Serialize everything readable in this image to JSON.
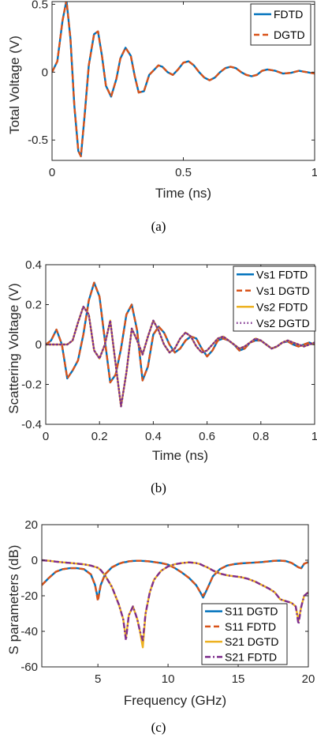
{
  "chart_data": [
    {
      "type": "line",
      "caption": "(a)",
      "xlabel": "Time (ns)",
      "ylabel": "Total Voltage (V)",
      "xlim": [
        0,
        1
      ],
      "ylim": [
        -0.65,
        0.52
      ],
      "xticks": [
        0,
        0.5,
        1
      ],
      "xtick_labels": [
        "0",
        "0.5",
        "1"
      ],
      "yticks": [
        -0.5,
        0,
        0.5
      ],
      "ytick_labels": [
        "-0.5",
        "0",
        "0.5"
      ],
      "grid": false,
      "legend_position": "top-right",
      "x": [
        0,
        0.02,
        0.04,
        0.055,
        0.07,
        0.085,
        0.1,
        0.11,
        0.125,
        0.14,
        0.16,
        0.175,
        0.19,
        0.205,
        0.225,
        0.245,
        0.26,
        0.28,
        0.3,
        0.315,
        0.33,
        0.35,
        0.37,
        0.39,
        0.405,
        0.42,
        0.44,
        0.46,
        0.48,
        0.5,
        0.52,
        0.54,
        0.56,
        0.58,
        0.6,
        0.62,
        0.64,
        0.66,
        0.68,
        0.7,
        0.72,
        0.74,
        0.76,
        0.78,
        0.8,
        0.82,
        0.85,
        0.88,
        0.91,
        0.94,
        0.97,
        1.0
      ],
      "series": [
        {
          "name": "FDTD",
          "color": "#0072BD",
          "dash": "solid",
          "values": [
            0,
            0.08,
            0.38,
            0.53,
            0.25,
            -0.25,
            -0.58,
            -0.62,
            -0.3,
            0.05,
            0.28,
            0.3,
            0.12,
            -0.1,
            -0.18,
            -0.05,
            0.1,
            0.18,
            0.12,
            -0.03,
            -0.15,
            -0.14,
            -0.02,
            0.02,
            0.05,
            0.04,
            0.0,
            -0.02,
            0.02,
            0.07,
            0.08,
            0.05,
            0.0,
            -0.04,
            -0.06,
            -0.04,
            0.0,
            0.03,
            0.04,
            0.03,
            0.0,
            -0.02,
            -0.03,
            -0.02,
            0.01,
            0.02,
            0.01,
            -0.01,
            -0.005,
            0.01,
            0.0,
            -0.01
          ]
        },
        {
          "name": "DGTD",
          "color": "#D95319",
          "dash": "dash",
          "values": [
            0,
            0.08,
            0.38,
            0.53,
            0.25,
            -0.25,
            -0.58,
            -0.62,
            -0.3,
            0.05,
            0.28,
            0.3,
            0.12,
            -0.1,
            -0.18,
            -0.05,
            0.1,
            0.18,
            0.12,
            -0.03,
            -0.15,
            -0.14,
            -0.02,
            0.02,
            0.05,
            0.04,
            0.0,
            -0.02,
            0.02,
            0.07,
            0.08,
            0.05,
            0.0,
            -0.04,
            -0.06,
            -0.04,
            0.0,
            0.03,
            0.04,
            0.03,
            0.0,
            -0.02,
            -0.03,
            -0.02,
            0.01,
            0.02,
            0.01,
            -0.01,
            -0.005,
            0.01,
            0.0,
            -0.01
          ]
        }
      ]
    },
    {
      "type": "line",
      "caption": "(b)",
      "xlabel": "Time (ns)",
      "ylabel": "Scattering Voltage (V)",
      "xlim": [
        0,
        1
      ],
      "ylim": [
        -0.4,
        0.4
      ],
      "xticks": [
        0,
        0.2,
        0.4,
        0.6,
        0.8,
        1
      ],
      "xtick_labels": [
        "0",
        "0.2",
        "0.4",
        "0.6",
        "0.8",
        "1"
      ],
      "yticks": [
        -0.4,
        -0.2,
        0,
        0.2,
        0.4
      ],
      "ytick_labels": [
        "-0.4",
        "-0.2",
        "0",
        "0.2",
        "0.4"
      ],
      "grid": false,
      "legend_position": "top-right",
      "x": [
        0,
        0.02,
        0.04,
        0.06,
        0.08,
        0.1,
        0.12,
        0.14,
        0.16,
        0.18,
        0.2,
        0.22,
        0.24,
        0.26,
        0.28,
        0.3,
        0.32,
        0.34,
        0.36,
        0.38,
        0.4,
        0.42,
        0.44,
        0.46,
        0.48,
        0.5,
        0.52,
        0.54,
        0.56,
        0.58,
        0.6,
        0.62,
        0.64,
        0.66,
        0.68,
        0.7,
        0.72,
        0.74,
        0.76,
        0.78,
        0.8,
        0.82,
        0.84,
        0.86,
        0.88,
        0.9,
        0.92,
        0.94,
        0.96,
        0.98,
        1.0
      ],
      "series": [
        {
          "name": "Vs1 FDTD",
          "color": "#0072BD",
          "dash": "solid",
          "values": [
            0,
            0.02,
            0.075,
            0.0,
            -0.17,
            -0.13,
            -0.08,
            0.05,
            0.22,
            0.31,
            0.24,
            0.02,
            -0.19,
            -0.15,
            -0.02,
            0.15,
            0.2,
            0.07,
            -0.18,
            -0.11,
            0.05,
            0.09,
            0.06,
            0.0,
            -0.04,
            -0.02,
            0.02,
            0.04,
            0.03,
            -0.02,
            -0.06,
            -0.03,
            0.02,
            0.03,
            0.02,
            0.0,
            -0.03,
            -0.02,
            0.01,
            0.02,
            0.02,
            0.0,
            -0.02,
            -0.01,
            0.01,
            0.015,
            0.0,
            -0.01,
            0.0,
            0.01,
            0.0
          ]
        },
        {
          "name": "Vs1 DGTD",
          "color": "#D95319",
          "dash": "dash",
          "values": [
            0,
            0.02,
            0.075,
            0.0,
            -0.17,
            -0.13,
            -0.08,
            0.05,
            0.22,
            0.31,
            0.24,
            0.02,
            -0.19,
            -0.15,
            -0.02,
            0.15,
            0.2,
            0.07,
            -0.18,
            -0.11,
            0.05,
            0.09,
            0.06,
            0.0,
            -0.04,
            -0.02,
            0.02,
            0.04,
            0.03,
            -0.02,
            -0.06,
            -0.03,
            0.02,
            0.03,
            0.02,
            0.0,
            -0.03,
            -0.02,
            0.01,
            0.02,
            0.02,
            0.0,
            -0.02,
            -0.01,
            0.01,
            0.015,
            0.0,
            -0.01,
            0.0,
            0.01,
            0.0
          ]
        },
        {
          "name": "Vs2 FDTD",
          "color": "#EDB120",
          "dash": "solid",
          "values": [
            0,
            0.0,
            0.0,
            0.0,
            0.0,
            0.02,
            0.11,
            0.19,
            0.15,
            -0.03,
            -0.07,
            0.0,
            0.12,
            -0.1,
            -0.31,
            -0.14,
            0.08,
            0.02,
            -0.05,
            0.04,
            0.12,
            0.07,
            0.0,
            -0.04,
            -0.02,
            0.03,
            0.06,
            0.04,
            -0.01,
            -0.04,
            -0.03,
            0.0,
            0.03,
            0.04,
            0.02,
            0.0,
            -0.02,
            -0.01,
            0.01,
            0.03,
            0.02,
            0.0,
            -0.02,
            -0.01,
            0.01,
            0.02,
            0.01,
            0.0,
            -0.01,
            0.0,
            0.01
          ]
        },
        {
          "name": "Vs2 DGTD",
          "color": "#7E2F8E",
          "dash": "dot",
          "values": [
            0,
            0.0,
            0.0,
            0.0,
            0.0,
            0.02,
            0.11,
            0.19,
            0.15,
            -0.03,
            -0.07,
            0.0,
            0.12,
            -0.1,
            -0.31,
            -0.14,
            0.08,
            0.02,
            -0.05,
            0.04,
            0.12,
            0.07,
            0.0,
            -0.04,
            -0.02,
            0.03,
            0.06,
            0.04,
            -0.01,
            -0.04,
            -0.03,
            0.0,
            0.03,
            0.04,
            0.02,
            0.0,
            -0.02,
            -0.01,
            0.01,
            0.03,
            0.02,
            0.0,
            -0.02,
            -0.01,
            0.01,
            0.02,
            0.01,
            0.0,
            -0.01,
            0.0,
            0.01
          ]
        }
      ]
    },
    {
      "type": "line",
      "caption": "(c)",
      "xlabel": "Frequency (GHz)",
      "ylabel": "S parameters (dB)",
      "xlim": [
        1,
        20
      ],
      "ylim": [
        -60,
        20
      ],
      "xticks": [
        5,
        10,
        15,
        20
      ],
      "xtick_labels": [
        "5",
        "10",
        "15",
        "20"
      ],
      "yticks": [
        -60,
        -40,
        -20,
        0,
        20
      ],
      "ytick_labels": [
        "-60",
        "-40",
        "-20",
        "0",
        "20"
      ],
      "grid": false,
      "legend_position": "bottom-right",
      "x": [
        1,
        1.5,
        2,
        2.5,
        3,
        3.5,
        4,
        4.5,
        4.8,
        5.0,
        5.2,
        5.5,
        6,
        6.5,
        6.8,
        7.0,
        7.2,
        7.5,
        7.8,
        8.0,
        8.2,
        8.4,
        8.7,
        9,
        9.5,
        10,
        10.5,
        11,
        11.5,
        12,
        12.3,
        12.5,
        12.8,
        13.2,
        13.7,
        14.2,
        14.7,
        15.2,
        15.7,
        16.2,
        16.7,
        17.2,
        17.6,
        18,
        18.4,
        18.8,
        19.1,
        19.3,
        19.5,
        19.7,
        20
      ],
      "series": [
        {
          "name": "S11 DGTD",
          "color": "#0072BD",
          "dash": "solid",
          "values": [
            -14,
            -10,
            -6.5,
            -5,
            -4.5,
            -4.5,
            -5,
            -8,
            -14,
            -22,
            -14,
            -8,
            -4,
            -2,
            -1.2,
            -1,
            -0.6,
            -0.4,
            -0.3,
            -0.3,
            -0.4,
            -0.5,
            -0.7,
            -1,
            -1.6,
            -2.5,
            -4.5,
            -7,
            -10,
            -14,
            -18,
            -21,
            -16,
            -9,
            -5,
            -3,
            -2.2,
            -1.8,
            -1.5,
            -1.3,
            -1,
            -0.6,
            -0.3,
            -0.2,
            -0.5,
            -1.5,
            -3,
            -4,
            -4.5,
            -2,
            -1
          ]
        },
        {
          "name": "S11 FDTD",
          "color": "#D95319",
          "dash": "dash",
          "values": [
            -14,
            -10,
            -6.5,
            -5,
            -4.5,
            -4.5,
            -5,
            -8,
            -14,
            -23,
            -14,
            -8,
            -4,
            -2,
            -1.2,
            -1,
            -0.6,
            -0.4,
            -0.3,
            -0.3,
            -0.4,
            -0.5,
            -0.7,
            -1,
            -1.6,
            -2.5,
            -4.5,
            -7,
            -10,
            -14,
            -18,
            -20,
            -16,
            -9,
            -5,
            -3,
            -2.2,
            -1.8,
            -1.5,
            -1.3,
            -1,
            -0.6,
            -0.3,
            -0.2,
            -0.5,
            -1.5,
            -3,
            -4,
            -4.5,
            -2,
            -1
          ]
        },
        {
          "name": "S21 DGTD",
          "color": "#EDB120",
          "dash": "solid",
          "values": [
            0,
            -0.3,
            -0.8,
            -1.2,
            -1.5,
            -1.9,
            -2.3,
            -3,
            -3.8,
            -4.2,
            -5.5,
            -8.5,
            -15,
            -25,
            -33,
            -44,
            -31,
            -26,
            -33,
            -40,
            -49,
            -30,
            -18,
            -11,
            -6,
            -3.5,
            -2.2,
            -1.6,
            -1.2,
            -1.6,
            -2.2,
            -3,
            -4,
            -5.8,
            -7.5,
            -8.5,
            -9,
            -9.5,
            -10.5,
            -12,
            -14,
            -16,
            -18,
            -22,
            -23,
            -24,
            -26,
            -34,
            -26,
            -20,
            -18
          ]
        },
        {
          "name": "S21 FDTD",
          "color": "#7E2F8E",
          "dash": "dashdot",
          "values": [
            0,
            -0.3,
            -0.8,
            -1.2,
            -1.5,
            -1.9,
            -2.3,
            -3,
            -3.8,
            -4.2,
            -5.5,
            -8.5,
            -15,
            -25,
            -33,
            -45,
            -31,
            -26,
            -33,
            -40,
            -45,
            -30,
            -18,
            -11,
            -6,
            -3.5,
            -2.2,
            -1.6,
            -1.2,
            -1.6,
            -2.2,
            -3,
            -4,
            -5.8,
            -7.5,
            -8.5,
            -9,
            -9.5,
            -10.5,
            -12,
            -14,
            -16,
            -18,
            -22,
            -23,
            -24,
            -26,
            -36,
            -26,
            -20,
            -18
          ]
        }
      ]
    }
  ]
}
